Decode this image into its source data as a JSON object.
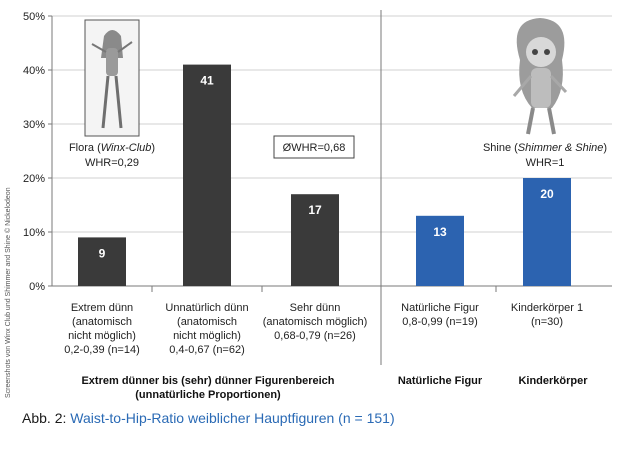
{
  "chart_data": {
    "type": "bar",
    "ylim": [
      0,
      50
    ],
    "y_ticks": [
      "0%",
      "10%",
      "20%",
      "30%",
      "40%",
      "50%"
    ],
    "y_tick_values": [
      0,
      10,
      20,
      30,
      40,
      50
    ],
    "categories": [
      [
        "Extrem dünn",
        "(anatomisch",
        "nicht möglich)",
        "0,2-0,39 (n=14)"
      ],
      [
        "Unnatürlich dünn",
        "(anatomisch",
        "nicht möglich)",
        "0,4-0,67 (n=62)"
      ],
      [
        "Sehr dünn",
        "(anatomisch möglich)",
        "0,68-0,79 (n=26)"
      ],
      [
        "Natürliche Figur",
        "0,8-0,99 (n=19)"
      ],
      [
        "Kinderkörper 1",
        "(n=30)"
      ]
    ],
    "values": [
      9,
      41,
      17,
      13,
      20
    ],
    "value_labels": [
      "9",
      "41",
      "17",
      "13",
      "20"
    ],
    "bar_colors": [
      "#3a3a3a",
      "#3a3a3a",
      "#3a3a3a",
      "#2c63b0",
      "#2c63b0"
    ],
    "groups": [
      [
        "Extrem dünner bis (sehr) dünner Figurenbereich",
        "(unnatürliche Proportionen)"
      ],
      [
        "Natürliche Figur"
      ],
      [
        "Kinderkörper"
      ]
    ],
    "annotations": {
      "flora_name": "Flora (",
      "flora_series": "Winx-Club",
      "flora_close": ")",
      "flora_whr": "WHR=0,29",
      "avg_whr": "ØWHR=0,68",
      "shine_name": "Shine (",
      "shine_series": "Shimmer & Shine",
      "shine_close": ")",
      "shine_whr": "WHR=1"
    },
    "credit": "Screenshots von Winx Club und Shimmer and Shine © Nickelodeon"
  },
  "caption": {
    "prefix": "Abb. 2: ",
    "title": "Waist-to-Hip-Ratio weiblicher Hauptfiguren (n = 151)"
  }
}
